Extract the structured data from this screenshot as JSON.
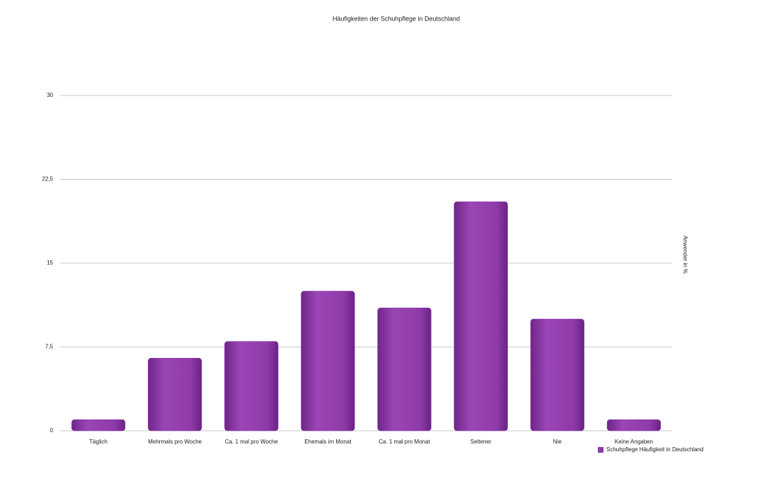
{
  "chart_data": {
    "type": "bar",
    "title": "Häufigkeiten der Schuhpflege in Deutschland",
    "y_label": "Anwender in %",
    "categories": [
      "Täglich",
      "Mehrmals pro Woche",
      "Ca. 1 mal pro Woche",
      "Ehemals im Monat",
      "Ca. 1 mal pro Monat",
      "Seltener",
      "Nie",
      "Keine Angaben"
    ],
    "series": [
      {
        "name": "Schuhpflege Häufigkeit in Deutschland",
        "color": "#8e3aa8",
        "values": [
          1,
          6.5,
          8,
          12.5,
          11,
          20.5,
          10,
          1
        ]
      }
    ],
    "ylim": [
      0,
      30
    ],
    "yticks": [
      0,
      {
        "value": 7.5,
        "label": "7,5"
      },
      15,
      {
        "value": 22.5,
        "label": "22,5"
      },
      30
    ],
    "grid": true,
    "legend": "bottom-right"
  }
}
